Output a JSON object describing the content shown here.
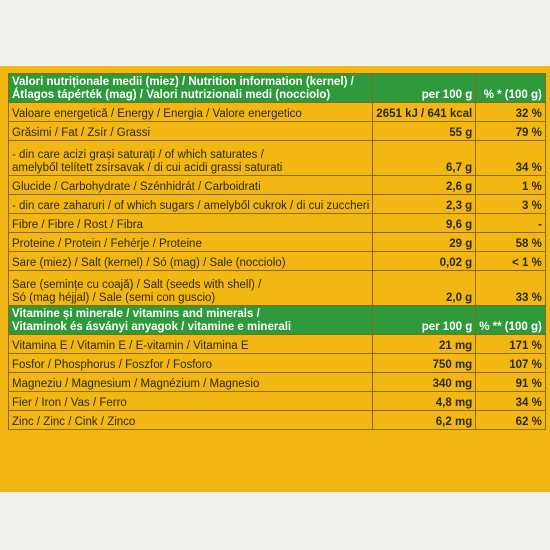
{
  "nutrition": {
    "header": {
      "line1": "Valori nutriționale medii (miez) / Nutrition information (kernel) /",
      "line2": "Átlagos tápérték (mag) / Valori nutrizionali medi (nocciolo)",
      "col2": "per 100 g",
      "col3": "% * (100 g)"
    },
    "rows": [
      {
        "label": "Valoare energetică / Energy / Energia / Valore energetico",
        "per100": "2651 kJ / 641 kcal",
        "pct": "32 %"
      },
      {
        "label": "Grăsimi / Fat / Zsír / Grassi",
        "per100": "55 g",
        "pct": "79 %"
      },
      {
        "line1": "- din care acizi grași saturați / of which saturates /",
        "line2": "amelyből telített zsírsavak / di cui acidi grassi saturati",
        "per100": "6,7 g",
        "pct": "34 %"
      },
      {
        "label": "Glucide / Carbohydrate / Szénhidrát / Carboidrati",
        "per100": "2,6 g",
        "pct": "1 %"
      },
      {
        "label": "- din care zaharuri / of which sugars / amelyből cukrok / di cui zuccheri",
        "per100": "2,3 g",
        "pct": "3 %"
      },
      {
        "label": "Fibre / Fibre / Rost / Fibra",
        "per100": "9,6 g",
        "pct": "-"
      },
      {
        "label": "Proteine / Protein / Fehérje / Proteine",
        "per100": "29 g",
        "pct": "58 %"
      },
      {
        "label": "Sare (miez) / Salt (kernel) / Só (mag) / Sale (nocciolo)",
        "per100": "0,02 g",
        "pct": "< 1 %"
      },
      {
        "line1": "Sare (semințe cu coajă) / Salt (seeds with shell) /",
        "line2": "Só (mag héjjal) / Sale (semi con guscio)",
        "per100": "2,0 g",
        "pct": "33 %"
      }
    ]
  },
  "vitamins": {
    "header": {
      "line1": "Vitamine și minerale / vitamins and minerals /",
      "line2": "Vitaminok és ásványi anyagok / vitamine e minerali",
      "col2": "per 100 g",
      "col3": "% ** (100 g)"
    },
    "rows": [
      {
        "label": "Vitamina E / Vitamin E / E-vitamin / Vitamina E",
        "per100": "21 mg",
        "pct": "171 %"
      },
      {
        "label": "Fosfor / Phosphorus / Foszfor / Fosforo",
        "per100": "750 mg",
        "pct": "107 %"
      },
      {
        "label": "Magneziu / Magnesium / Magnézium / Magnesio",
        "per100": "340 mg",
        "pct": "91 %"
      },
      {
        "label": "Fier / Iron / Vas / Ferro",
        "per100": "4,8 mg",
        "pct": "34 %"
      },
      {
        "label": "Zinc / Zinc / Cink / Zinco",
        "per100": "6,2 mg",
        "pct": "62 %"
      }
    ]
  },
  "colors": {
    "background": "#f2b713",
    "header": "#2f9a3c",
    "border": "#8a6a10"
  }
}
